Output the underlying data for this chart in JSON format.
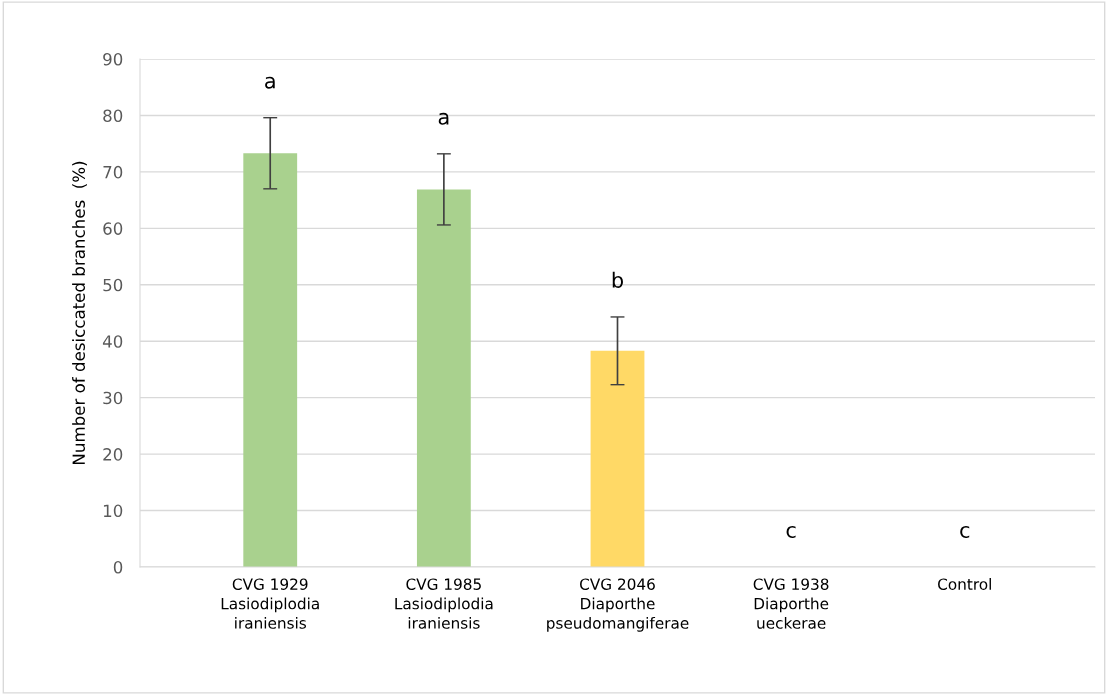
{
  "chart_data": {
    "type": "bar",
    "ylabel": "Number of desiccated branches  (%)",
    "categories": [
      "CVG 1929\nLasiodiplodia\niraniensis",
      "CVG 1985\nLasiodiplodia\niraniensis",
      "CVG 2046\nDiaporthe\npseudomangiferae",
      "CVG 1938\nDiaporthe\nueckerae",
      "Control"
    ],
    "values": [
      73.3,
      66.9,
      38.3,
      0,
      0
    ],
    "colors": [
      "#a9d18e",
      "#a9d18e",
      "#ffd966",
      "#a9d18e",
      "#a9d18e"
    ],
    "errors": [
      6.3,
      6.3,
      6.0,
      null,
      null
    ],
    "ylim": [
      0,
      90
    ],
    "yticks": [
      0,
      10,
      20,
      30,
      40,
      50,
      60,
      70,
      80,
      90
    ],
    "grid": "y",
    "annotations": [
      "a",
      "a",
      "b",
      "c",
      "c"
    ]
  }
}
